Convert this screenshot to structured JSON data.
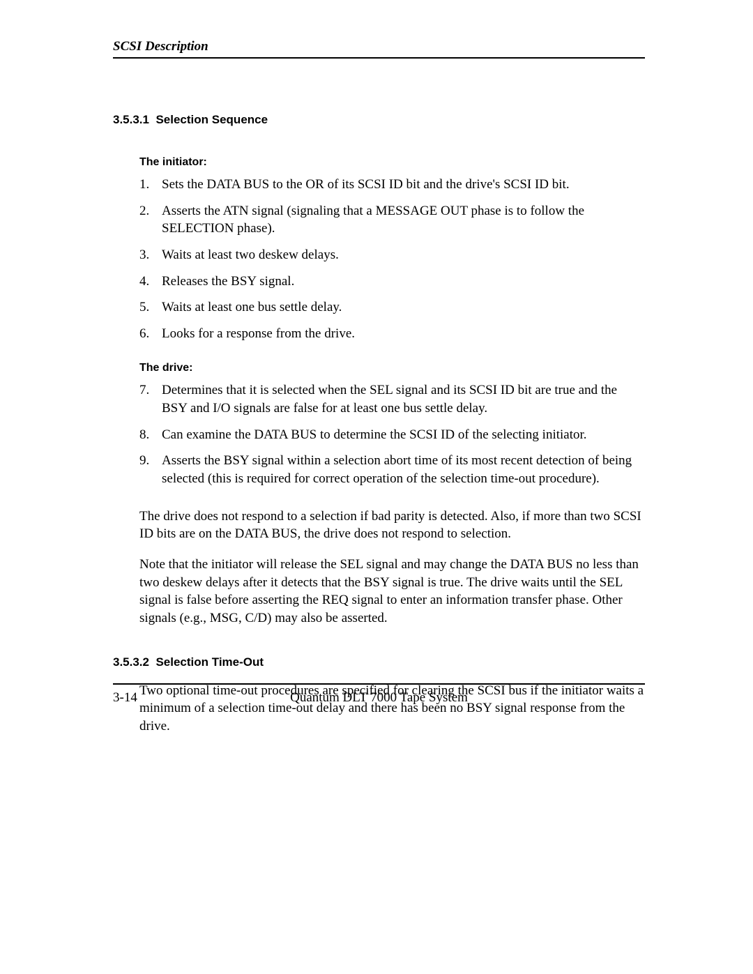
{
  "header": {
    "running_title": "SCSI Description"
  },
  "section1": {
    "number": "3.5.3.1",
    "title": "Selection Sequence",
    "subheading1": "The initiator:",
    "list1": [
      {
        "n": "1.",
        "text": "Sets the DATA BUS to the OR of its SCSI ID bit and the drive's SCSI ID bit."
      },
      {
        "n": "2.",
        "text": "Asserts the ATN signal (signaling that a MESSAGE OUT phase is to follow the SELECTION phase)."
      },
      {
        "n": "3.",
        "text": "Waits at least two deskew delays."
      },
      {
        "n": "4.",
        "text": "Releases the BSY signal."
      },
      {
        "n": "5.",
        "text": "Waits at least one bus settle delay."
      },
      {
        "n": "6.",
        "text": "Looks for a response from the drive."
      }
    ],
    "subheading2": "The drive:",
    "list2": [
      {
        "n": "7.",
        "text": "Determines that it is selected when the SEL signal and its SCSI ID bit are true and the BSY and I/O signals are false for at least one bus settle delay."
      },
      {
        "n": "8.",
        "text": "Can examine the DATA BUS to determine the SCSI ID of the selecting initiator."
      },
      {
        "n": "9.",
        "text": "Asserts the BSY signal within a selection abort time of its most recent detection of being selected (this is required for correct operation of the selection time-out procedure)."
      }
    ],
    "para1": "The drive does not respond to a selection if bad parity is detected. Also, if more than two SCSI ID bits are on the DATA BUS, the drive does not respond to selection.",
    "para2": "Note that the initiator will release the SEL signal and may change the DATA BUS no less than two deskew delays after it detects that the BSY signal is true. The drive waits until the SEL signal is false before asserting the REQ signal to enter an information transfer phase. Other signals (e.g., MSG, C/D) may also be asserted."
  },
  "section2": {
    "number": "3.5.3.2",
    "title": "Selection Time-Out",
    "para1": "Two optional time-out procedures are specified for clearing the SCSI bus if the initiator waits a minimum of a selection time-out delay and there has been no BSY signal response from the drive."
  },
  "footer": {
    "page_number": "3-14",
    "doc_title": "Quantum DLT 7000 Tape System"
  }
}
